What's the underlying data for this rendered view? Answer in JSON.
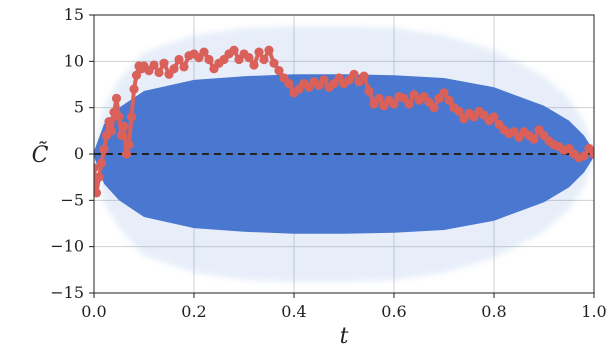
{
  "chart_data": {
    "type": "scatter",
    "title": "",
    "xlabel": "t",
    "ylabel": "C̃",
    "xlim": [
      0.0,
      1.0
    ],
    "ylim": [
      -15,
      15
    ],
    "x_ticks": [
      0.0,
      0.2,
      0.4,
      0.6,
      0.8,
      1.0
    ],
    "x_tick_labels": [
      "0.0",
      "0.2",
      "0.4",
      "0.6",
      "0.8",
      "1.0"
    ],
    "y_ticks": [
      -15,
      -10,
      -5,
      0,
      5,
      10,
      15
    ],
    "y_tick_labels": [
      "−15",
      "−10",
      "−5",
      "0",
      "5",
      "10",
      "15"
    ],
    "grid": true,
    "legend": "none",
    "reference_line": {
      "y": 0,
      "style": "dashed",
      "color": "#222222"
    },
    "colors": {
      "ensemble": "#4a78d0",
      "path": "#d9615a",
      "grid": "#d0d0d0"
    },
    "series": [
      {
        "kind": "ensemble_band",
        "color": "#4a78d0",
        "envelope_x": [
          0.0,
          0.02,
          0.05,
          0.1,
          0.2,
          0.3,
          0.4,
          0.5,
          0.6,
          0.7,
          0.8,
          0.9,
          0.95,
          0.98,
          1.0
        ],
        "core_upper": [
          0.3,
          3.2,
          5.0,
          6.8,
          8.0,
          8.4,
          8.6,
          8.6,
          8.5,
          8.2,
          7.2,
          5.2,
          3.6,
          2.0,
          0.3
        ],
        "core_lower": [
          -0.3,
          -3.2,
          -5.0,
          -6.8,
          -8.0,
          -8.4,
          -8.6,
          -8.6,
          -8.5,
          -8.2,
          -7.2,
          -5.2,
          -3.6,
          -2.0,
          -0.3
        ],
        "halo_upper": [
          0.6,
          5.2,
          8.0,
          11.0,
          12.8,
          13.6,
          13.8,
          13.8,
          13.6,
          12.8,
          11.2,
          8.4,
          6.0,
          3.5,
          0.6
        ],
        "halo_lower": [
          -0.6,
          -5.2,
          -8.0,
          -11.0,
          -12.8,
          -13.6,
          -13.8,
          -13.8,
          -13.6,
          -12.8,
          -11.2,
          -8.4,
          -6.0,
          -3.5,
          -0.6
        ]
      },
      {
        "kind": "sample_path",
        "color": "#d9615a",
        "x": [
          0.0,
          0.005,
          0.01,
          0.015,
          0.02,
          0.025,
          0.03,
          0.035,
          0.04,
          0.045,
          0.05,
          0.055,
          0.06,
          0.065,
          0.07,
          0.075,
          0.08,
          0.085,
          0.09,
          0.095,
          0.1,
          0.11,
          0.12,
          0.13,
          0.14,
          0.15,
          0.16,
          0.17,
          0.18,
          0.19,
          0.2,
          0.21,
          0.22,
          0.23,
          0.24,
          0.25,
          0.26,
          0.27,
          0.28,
          0.29,
          0.3,
          0.31,
          0.32,
          0.33,
          0.34,
          0.35,
          0.36,
          0.37,
          0.38,
          0.39,
          0.4,
          0.41,
          0.42,
          0.43,
          0.44,
          0.45,
          0.46,
          0.47,
          0.48,
          0.49,
          0.5,
          0.51,
          0.52,
          0.53,
          0.54,
          0.55,
          0.56,
          0.57,
          0.58,
          0.59,
          0.6,
          0.61,
          0.62,
          0.63,
          0.64,
          0.65,
          0.66,
          0.67,
          0.68,
          0.69,
          0.7,
          0.71,
          0.72,
          0.73,
          0.74,
          0.75,
          0.76,
          0.77,
          0.78,
          0.79,
          0.8,
          0.81,
          0.82,
          0.83,
          0.84,
          0.85,
          0.86,
          0.87,
          0.88,
          0.89,
          0.9,
          0.91,
          0.92,
          0.93,
          0.94,
          0.95,
          0.96,
          0.97,
          0.98,
          0.99,
          1.0
        ],
        "y": [
          -1.5,
          -4.2,
          -2.5,
          -1.0,
          0.5,
          2.0,
          3.5,
          2.5,
          4.5,
          6.0,
          4.0,
          2.0,
          3.0,
          0.0,
          1.0,
          4.0,
          7.0,
          8.5,
          9.5,
          9.2,
          9.5,
          9.0,
          9.6,
          8.8,
          9.8,
          8.6,
          9.2,
          10.2,
          9.4,
          10.6,
          10.8,
          10.4,
          11.0,
          10.2,
          9.2,
          9.8,
          10.2,
          10.8,
          11.2,
          10.2,
          10.8,
          10.4,
          9.6,
          11.0,
          10.2,
          11.2,
          9.8,
          9.0,
          8.2,
          7.6,
          6.6,
          7.0,
          7.6,
          7.2,
          7.8,
          7.4,
          8.0,
          7.2,
          7.6,
          8.2,
          7.6,
          8.0,
          8.6,
          7.8,
          8.4,
          6.8,
          5.4,
          6.0,
          5.2,
          5.8,
          5.4,
          6.2,
          6.0,
          5.4,
          6.4,
          5.8,
          6.2,
          5.6,
          5.0,
          6.0,
          6.6,
          5.8,
          5.0,
          4.6,
          3.8,
          4.4,
          4.0,
          4.6,
          4.2,
          3.6,
          4.0,
          3.2,
          2.6,
          2.2,
          2.4,
          1.8,
          2.4,
          2.0,
          1.6,
          2.6,
          2.0,
          1.4,
          1.0,
          0.8,
          0.4,
          0.6,
          0.0,
          -0.4,
          -0.2,
          0.6,
          0.0
        ]
      }
    ]
  }
}
